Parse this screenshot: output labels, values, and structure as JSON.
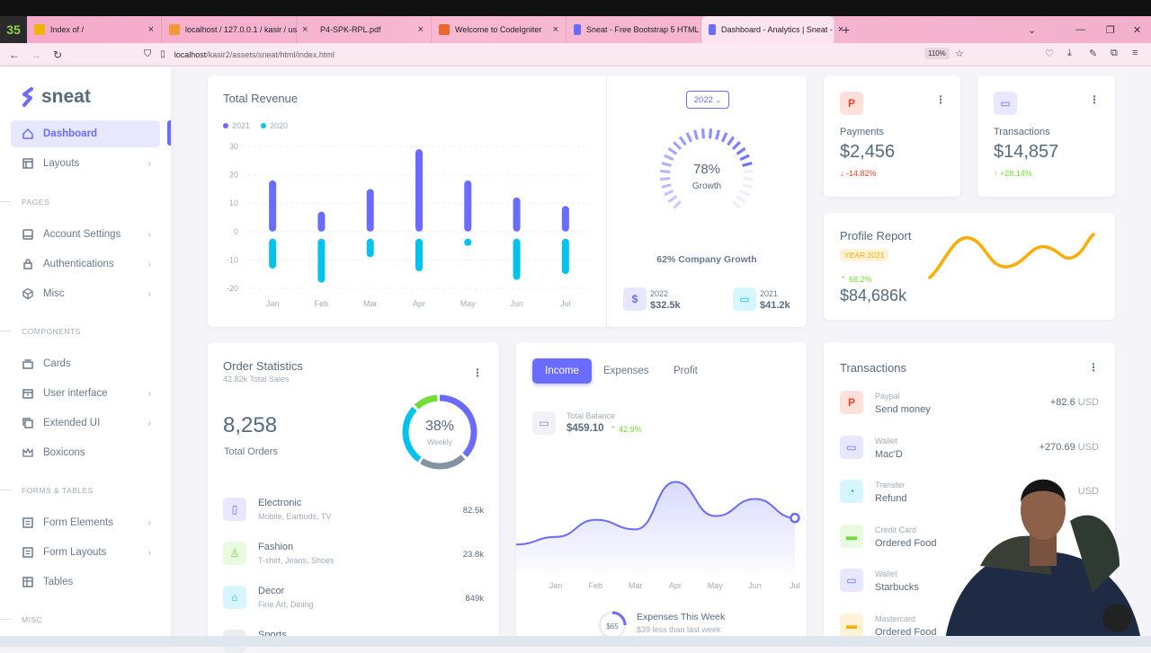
{
  "browser": {
    "tab_count_badge": "35",
    "tabs": [
      {
        "title": "Index of /"
      },
      {
        "title": "localhost / 127.0.0.1 / kasir / us"
      },
      {
        "title": "P4-SPK-RPL.pdf"
      },
      {
        "title": "Welcome to CodeIgniter"
      },
      {
        "title": "Sneat - Free Bootstrap 5 HTML"
      },
      {
        "title": "Dashboard - Analytics | Sneat -"
      }
    ],
    "url_host": "localhost",
    "url_path": "/kasir2/assets/sneat/html/index.html",
    "zoom": "110%"
  },
  "sidebar": {
    "brand": "sneat",
    "items": [
      {
        "label": "Dashboard",
        "icon": "home-icon"
      },
      {
        "label": "Layouts",
        "icon": "layout-icon"
      },
      {
        "label": "Account Settings",
        "icon": "dock-icon"
      },
      {
        "label": "Authentications",
        "icon": "lock-icon"
      },
      {
        "label": "Misc",
        "icon": "cube-icon"
      },
      {
        "label": "Cards",
        "icon": "collection-icon"
      },
      {
        "label": "User interface",
        "icon": "box-icon"
      },
      {
        "label": "Extended UI",
        "icon": "copy-icon"
      },
      {
        "label": "Boxicons",
        "icon": "crown-icon"
      },
      {
        "label": "Form Elements",
        "icon": "detail-icon"
      },
      {
        "label": "Form Layouts",
        "icon": "detail-icon"
      },
      {
        "label": "Tables",
        "icon": "table-icon"
      }
    ],
    "sections": [
      "PAGES",
      "COMPONENTS",
      "FORMS & TABLES",
      "MISC"
    ]
  },
  "revenue": {
    "title": "Total Revenue",
    "legend": [
      "2021",
      "2020"
    ],
    "year_button": "2022",
    "growth_percent": "78%",
    "growth_label": "Growth",
    "company_growth": "62% Company Growth",
    "stats": [
      {
        "year": "2022",
        "value": "$32.5k",
        "icon": "dollar-icon"
      },
      {
        "year": "2021",
        "value": "$41.2k",
        "icon": "wallet-icon"
      }
    ]
  },
  "chart_data": {
    "type": "bar",
    "title": "Total Revenue",
    "categories": [
      "Jan",
      "Feb",
      "Mar",
      "Apr",
      "May",
      "Jun",
      "Jul"
    ],
    "series": [
      {
        "name": "2021",
        "values": [
          18,
          7,
          15,
          29,
          18,
          12,
          9
        ],
        "color": "#696cff"
      },
      {
        "name": "2020",
        "values": [
          -13,
          -18,
          -9,
          -14,
          -5,
          -17,
          -15
        ],
        "color": "#03c3ec"
      }
    ],
    "yticks": [
      30,
      20,
      10,
      0,
      -10,
      -20
    ],
    "ylim": [
      -20,
      30
    ],
    "grid": true
  },
  "payments": {
    "label": "Payments",
    "value": "$2,456",
    "change": "-14.82%"
  },
  "transactions_stat": {
    "label": "Transactions",
    "value": "$14,857",
    "change": "+28.14%"
  },
  "profile": {
    "title": "Profile Report",
    "badge": "YEAR 2021",
    "change": "68.2%",
    "value": "$84,686k"
  },
  "orders": {
    "title": "Order Statistics",
    "subtitle": "42.82k Total Sales",
    "total": "8,258",
    "total_label": "Total Orders",
    "donut_percent": "38%",
    "donut_label": "Weekly",
    "categories": [
      {
        "name": "Electronic",
        "desc": "Mobile, Earbuds, TV",
        "value": "82.5k",
        "icon": "mobile-icon"
      },
      {
        "name": "Fashion",
        "desc": "T-shirt, Jeans, Shoes",
        "value": "23.8k",
        "icon": "closet-icon"
      },
      {
        "name": "Decor",
        "desc": "Fine Art, Dining",
        "value": "849k",
        "icon": "home-alt-icon"
      },
      {
        "name": "Sports",
        "desc": "",
        "value": "",
        "icon": "football-icon"
      }
    ]
  },
  "income": {
    "tabs": [
      "Income",
      "Expenses",
      "Profit"
    ],
    "balance_label": "Total Balance",
    "balance": "$459.10",
    "balance_change": "42.9%",
    "months": [
      "Jan",
      "Feb",
      "Mar",
      "Apr",
      "May",
      "Jun",
      "Jul"
    ],
    "line_values": [
      21,
      30,
      25,
      50,
      32,
      41,
      31
    ],
    "expense_value": "$65",
    "expense_title": "Expenses This Week",
    "expense_sub": "$39 less than last week"
  },
  "transactions": {
    "title": "Transactions",
    "items": [
      {
        "type": "Paypal",
        "desc": "Send money",
        "amount": "+82.6",
        "currency": "USD",
        "icon": "paypal-icon"
      },
      {
        "type": "Wallet",
        "desc": "Mac'D",
        "amount": "+270.69",
        "currency": "USD",
        "icon": "wallet-icon"
      },
      {
        "type": "Transfer",
        "desc": "Refund",
        "amount": "",
        "currency": "USD",
        "icon": "chart-icon"
      },
      {
        "type": "Credit Card",
        "desc": "Ordered Food",
        "amount": "",
        "currency": "",
        "icon": "credit-card-icon"
      },
      {
        "type": "Wallet",
        "desc": "Starbucks",
        "amount": "",
        "currency": "",
        "icon": "wallet-icon"
      },
      {
        "type": "Mastercard",
        "desc": "Ordered Food",
        "amount": "",
        "currency": "",
        "icon": "credit-card-icon"
      }
    ]
  },
  "colors": {
    "primary": "#696cff",
    "info": "#03c3ec",
    "success": "#71dd37",
    "danger": "#ff3e1d",
    "warning": "#ffab00"
  }
}
